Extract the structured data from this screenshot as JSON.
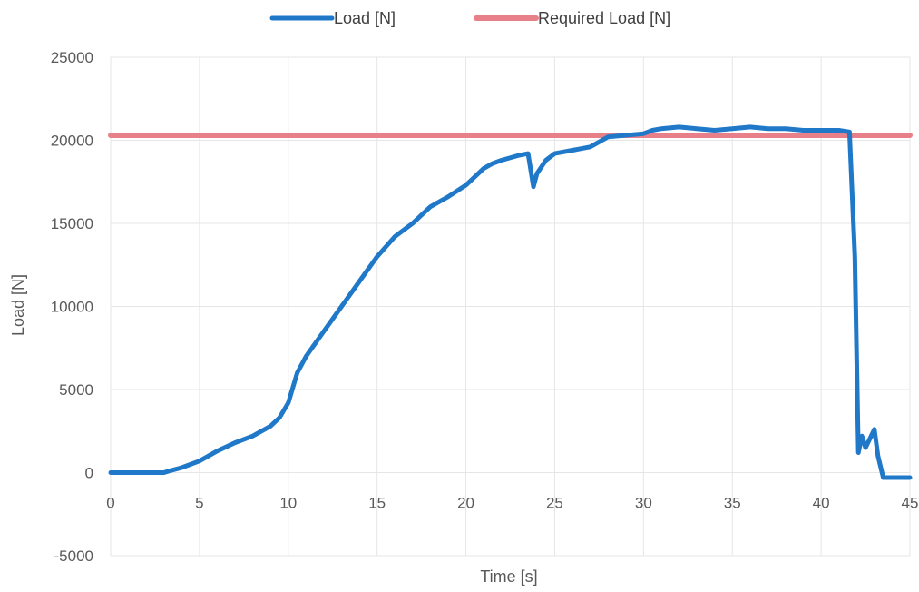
{
  "chart_data": {
    "type": "line",
    "title": "",
    "xlabel": "Time [s]",
    "ylabel": "Load [N]",
    "xlim": [
      0,
      45
    ],
    "ylim": [
      -5000,
      25000
    ],
    "xticks": [
      0,
      5,
      10,
      15,
      20,
      25,
      30,
      35,
      40,
      45
    ],
    "yticks": [
      -5000,
      0,
      5000,
      10000,
      15000,
      20000,
      25000
    ],
    "grid": true,
    "legend_position": "top",
    "series": [
      {
        "name": "Load [N]",
        "color": "#1F78C8",
        "x": [
          0,
          1,
          2,
          3,
          3.3,
          4,
          5,
          6,
          7,
          8,
          9,
          9.5,
          10,
          10.5,
          11,
          12,
          13,
          14,
          15,
          16,
          17,
          18,
          19,
          20,
          21,
          21.5,
          22,
          23,
          23.5,
          23.8,
          24,
          24.5,
          25,
          26,
          27,
          27.5,
          28,
          29,
          30,
          30.5,
          31,
          32,
          33,
          34,
          35,
          36,
          37,
          38,
          39,
          40,
          41,
          41.6,
          41.9,
          42.1,
          42.3,
          42.5,
          43,
          43.2,
          43.5,
          44,
          45
        ],
        "y": [
          0,
          0,
          0,
          0,
          100,
          300,
          700,
          1300,
          1800,
          2200,
          2800,
          3300,
          4200,
          6000,
          7000,
          8500,
          10000,
          11500,
          13000,
          14200,
          15000,
          16000,
          16600,
          17300,
          18300,
          18600,
          18800,
          19100,
          19200,
          17200,
          18000,
          18800,
          19200,
          19400,
          19600,
          19900,
          20200,
          20300,
          20400,
          20600,
          20700,
          20800,
          20700,
          20600,
          20700,
          20800,
          20700,
          20700,
          20600,
          20600,
          20600,
          20500,
          13000,
          1200,
          2200,
          1500,
          2600,
          1000,
          -300,
          -300,
          -300
        ]
      },
      {
        "name": "Required Load [N]",
        "color": "#E8808A",
        "x": [
          0,
          45
        ],
        "y": [
          20300,
          20300
        ]
      }
    ]
  }
}
